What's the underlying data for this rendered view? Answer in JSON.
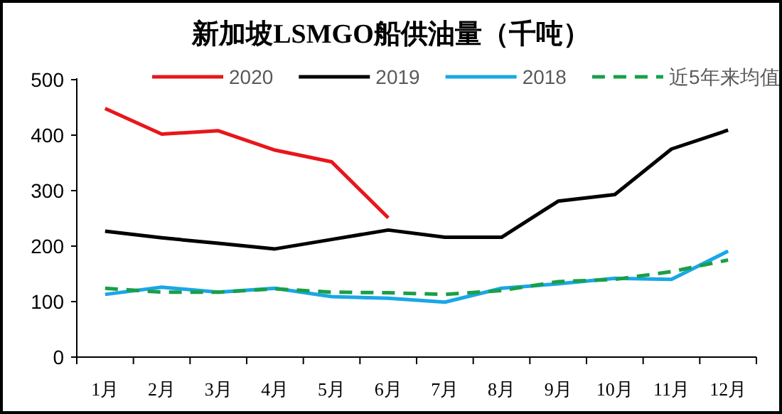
{
  "chart_data": {
    "type": "line",
    "title": "新加坡LSMGO船供油量（千吨）",
    "categories": [
      "1月",
      "2月",
      "3月",
      "4月",
      "5月",
      "6月",
      "7月",
      "8月",
      "9月",
      "10月",
      "11月",
      "12月"
    ],
    "series": [
      {
        "name": "2020",
        "color": "#e8161b",
        "values": [
          448,
          402,
          408,
          373,
          352,
          251,
          null,
          null,
          null,
          null,
          null,
          null
        ]
      },
      {
        "name": "2019",
        "color": "#000000",
        "values": [
          227,
          215,
          205,
          195,
          212,
          229,
          216,
          216,
          281,
          293,
          375,
          409
        ]
      },
      {
        "name": "2018",
        "color": "#1aa7e6",
        "values": [
          113,
          126,
          117,
          124,
          109,
          106,
          99,
          124,
          132,
          142,
          140,
          191
        ]
      },
      {
        "name": "近5年来均值",
        "color": "#1a9f48",
        "line_style": "dashed",
        "values": [
          124,
          117,
          117,
          123,
          117,
          116,
          113,
          120,
          136,
          140,
          154,
          175
        ]
      }
    ],
    "ylim": [
      0,
      500
    ],
    "yticks": [
      0,
      100,
      200,
      300,
      400,
      500
    ],
    "legend": "top",
    "grid": false,
    "marker": "none",
    "line_style": "solid"
  }
}
